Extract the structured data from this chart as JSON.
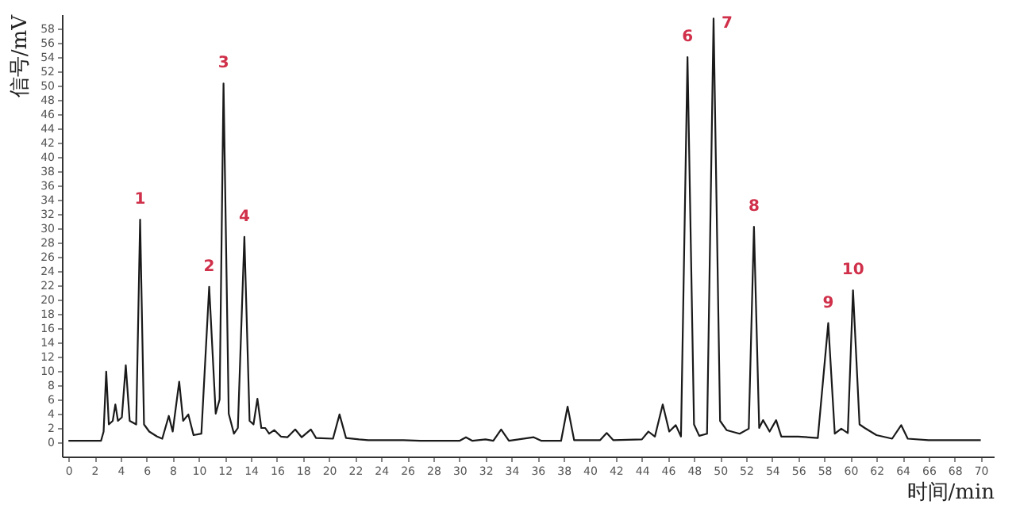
{
  "chart_data": {
    "type": "line",
    "xlabel": "时间/min",
    "ylabel": "信号/mV",
    "xlim": [
      -0.5,
      71
    ],
    "ylim": [
      -2,
      60
    ],
    "xticks": [
      0,
      2,
      4,
      6,
      8,
      10,
      12,
      14,
      16,
      18,
      20,
      22,
      24,
      26,
      28,
      30,
      32,
      34,
      36,
      38,
      40,
      42,
      44,
      46,
      48,
      50,
      52,
      54,
      56,
      58,
      60,
      62,
      64,
      66,
      68,
      70
    ],
    "yticks": [
      0,
      2,
      4,
      6,
      8,
      10,
      12,
      14,
      16,
      18,
      20,
      22,
      24,
      26,
      28,
      30,
      32,
      34,
      36,
      38,
      40,
      42,
      44,
      46,
      48,
      50,
      52,
      54,
      56,
      58
    ],
    "grid": false,
    "marker": "none",
    "line_style": "solid",
    "x": [
      0,
      2.5,
      2.7,
      2.9,
      3.1,
      3.4,
      3.6,
      3.8,
      4.1,
      4.4,
      4.7,
      5.2,
      5.5,
      5.8,
      6.2,
      6.8,
      7.2,
      7.7,
      8.0,
      8.5,
      8.8,
      9.2,
      9.6,
      10.2,
      10.8,
      11.3,
      11.6,
      11.9,
      12.3,
      12.7,
      13.0,
      13.5,
      13.9,
      14.2,
      14.5,
      14.8,
      15.1,
      15.4,
      15.8,
      16.3,
      16.8,
      17.4,
      17.9,
      18.6,
      19.0,
      20.3,
      20.8,
      21.3,
      22.3,
      23,
      25.7,
      27,
      30,
      30.5,
      31,
      32.0,
      32.6,
      33.2,
      33.8,
      35.7,
      36.3,
      37.8,
      38.3,
      38.8,
      40.8,
      41.3,
      41.8,
      44,
      44.5,
      45,
      45.6,
      46.1,
      46.6,
      47.0,
      47.5,
      48.0,
      48.4,
      49.0,
      49.5,
      50.0,
      50.5,
      51.5,
      52.2,
      52.6,
      53.0,
      53.3,
      53.8,
      54.3,
      54.7,
      56,
      57.5,
      58.3,
      58.8,
      59.3,
      59.8,
      60.2,
      60.7,
      61.1,
      62,
      63.2,
      63.9,
      64.4,
      66,
      70
    ],
    "series": [
      {
        "color": "#1a1a1a",
        "values": [
          0.2,
          0.2,
          1.5,
          9.9,
          2.5,
          3,
          5.3,
          3,
          3.5,
          10.8,
          3,
          2.5,
          31.2,
          2.5,
          1.5,
          0.8,
          0.5,
          3.7,
          1.5,
          8.5,
          3,
          3.9,
          1,
          1.2,
          21.8,
          4,
          6,
          50.3,
          4,
          1.2,
          2,
          28.8,
          3,
          2.5,
          6.1,
          2,
          2.0,
          1.2,
          1.7,
          0.8,
          0.7,
          1.8,
          0.7,
          1.8,
          0.6,
          0.5,
          3.9,
          0.6,
          0.4,
          0.3,
          0.3,
          0.2,
          0.2,
          0.7,
          0.2,
          0.4,
          0.2,
          1.8,
          0.2,
          0.7,
          0.2,
          0.2,
          5.0,
          0.3,
          0.3,
          1.3,
          0.3,
          0.4,
          1.5,
          0.8,
          5.3,
          1.5,
          2.4,
          0.8,
          54.0,
          2.5,
          0.9,
          1.2,
          59.4,
          3,
          1.7,
          1.2,
          1.9,
          30.2,
          2,
          3.1,
          1.5,
          3.1,
          0.8,
          0.8,
          0.6,
          16.7,
          1.2,
          1.9,
          1.3,
          21.3,
          2.5,
          2.0,
          1,
          0.5,
          2.4,
          0.5,
          0.3,
          0.3
        ]
      }
    ],
    "annotations": [
      {
        "text": "1",
        "x": 5.5,
        "y": 31.2
      },
      {
        "text": "2",
        "x": 10.8,
        "y": 21.8
      },
      {
        "text": "3",
        "x": 11.9,
        "y": 50.3
      },
      {
        "text": "4",
        "x": 13.5,
        "y": 28.8
      },
      {
        "text": "6",
        "x": 47.5,
        "y": 54.0
      },
      {
        "text": "7",
        "x": 49.5,
        "y": 59.4
      },
      {
        "text": "8",
        "x": 52.6,
        "y": 30.2
      },
      {
        "text": "9",
        "x": 58.3,
        "y": 16.7
      },
      {
        "text": "10",
        "x": 60.2,
        "y": 21.3
      }
    ]
  }
}
